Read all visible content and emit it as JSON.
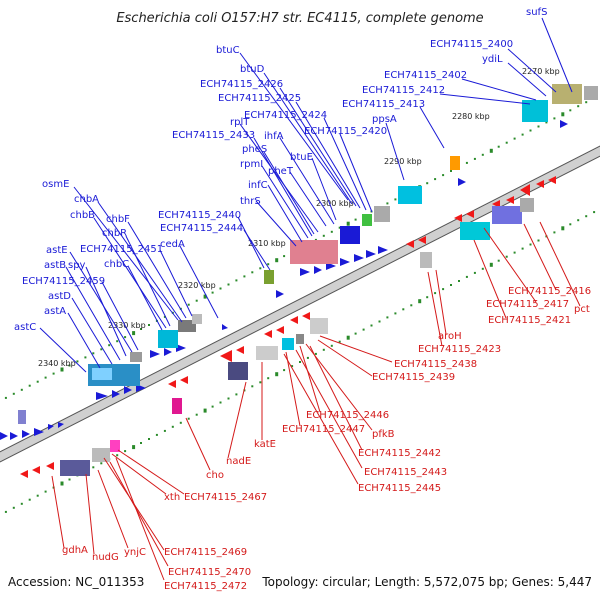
{
  "title": "Escherichia coli O157:H7 str. EC4115, complete genome",
  "footer": {
    "accession": "Accession: NC_011353",
    "summary": "Topology: circular; Length: 5,572,075 bp; Genes: 5,447"
  },
  "colors": {
    "forward_label": "#1a1ad6",
    "reverse_label": "#d41a1a",
    "backbone": "#8a8a8a",
    "tick": "#2a8a2a"
  },
  "ticks": [
    "2270 kbp",
    "2280 kbp",
    "2290 kbp",
    "2300 kbp",
    "2310 kbp",
    "2320 kbp",
    "2330 kbp",
    "2340 kbp"
  ],
  "forward_genes": [
    "sufS",
    "ECH74115_2400",
    "ydiL",
    "ECH74115_2402",
    "ECH74115_2412",
    "ECH74115_2413",
    "ppsA",
    "btuC",
    "btuD",
    "ECH74115_2426",
    "ECH74115_2425",
    "ECH74115_2424",
    "rplT",
    "ECH74115_2420",
    "ihfA",
    "ECH74115_2433",
    "pheS",
    "rpmI",
    "btuE",
    "pheT",
    "infC",
    "thrS",
    "ECH74115_2440",
    "ECH74115_2444",
    "cedA",
    "osmE",
    "chbA",
    "chbB",
    "chbF",
    "chbR",
    "ECH74115_2451",
    "chbC",
    "astE",
    "astB",
    "spy",
    "ECH74115_2459",
    "astD",
    "astA",
    "astC"
  ],
  "reverse_genes": [
    "ECH74115_2416",
    "ECH74115_2417",
    "pct",
    "ECH74115_2421",
    "aroH",
    "ECH74115_2423",
    "ECH74115_2438",
    "ECH74115_2439",
    "ECH74115_2446",
    "pfkB",
    "ECH74115_2447",
    "katE",
    "ECH74115_2442",
    "ECH74115_2443",
    "ECH74115_2445",
    "nadE",
    "cho",
    "ECH74115_2467",
    "xth",
    "ECH74115_2469",
    "gdhA",
    "nudG",
    "ynjC",
    "ECH74115_2470",
    "ECH74115_2472"
  ]
}
